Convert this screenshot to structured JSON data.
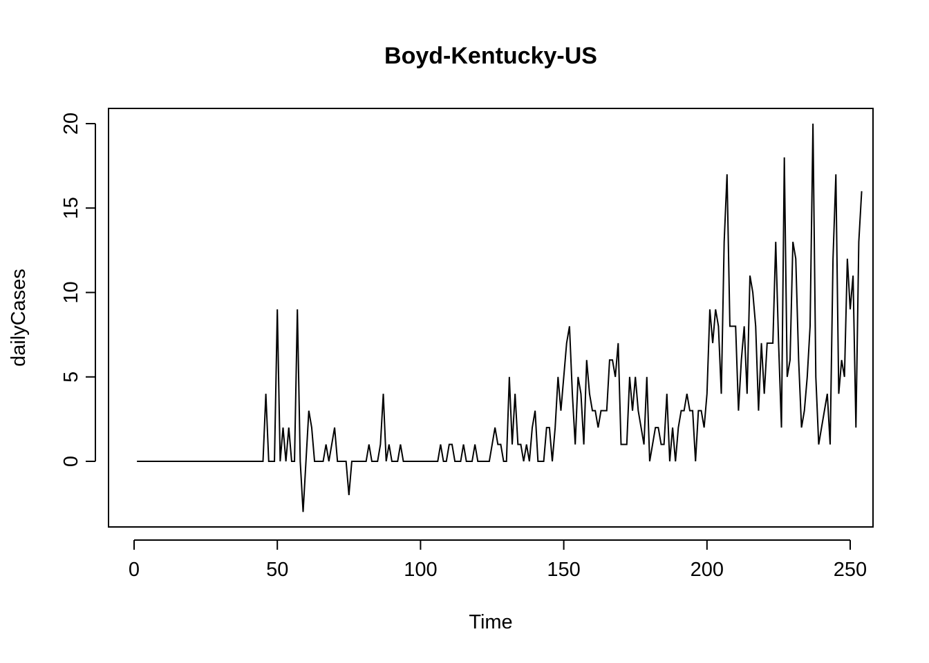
{
  "chart_data": {
    "type": "line",
    "title": "Boyd-Kentucky-US",
    "xlabel": "Time",
    "ylabel": "dailyCases",
    "xlim": [
      1,
      248
    ],
    "ylim": [
      -3,
      20
    ],
    "x_ticks": [
      0,
      50,
      100,
      150,
      200,
      250
    ],
    "y_ticks": [
      0,
      5,
      10,
      15,
      20
    ],
    "x_tick_labels": [
      "0",
      "50",
      "100",
      "150",
      "200",
      "250"
    ],
    "y_tick_labels": [
      "0",
      "5",
      "10",
      "15",
      "20"
    ],
    "grid": false,
    "series": [
      {
        "color": "#000000",
        "x_start": 1,
        "values": [
          0,
          0,
          0,
          0,
          0,
          0,
          0,
          0,
          0,
          0,
          0,
          0,
          0,
          0,
          0,
          0,
          0,
          0,
          0,
          0,
          0,
          0,
          0,
          0,
          0,
          0,
          0,
          0,
          0,
          0,
          0,
          0,
          0,
          0,
          0,
          0,
          0,
          0,
          0,
          0,
          0,
          0,
          0,
          0,
          0,
          4,
          0,
          0,
          0,
          9,
          0,
          2,
          0,
          2,
          0,
          0,
          9,
          0,
          -3,
          0,
          3,
          2,
          0,
          0,
          0,
          0,
          1,
          0,
          1,
          2,
          0,
          0,
          0,
          0,
          -2,
          0,
          0,
          0,
          0,
          0,
          0,
          1,
          0,
          0,
          0,
          1,
          4,
          0,
          1,
          0,
          0,
          0,
          1,
          0,
          0,
          0,
          0,
          0,
          0,
          0,
          0,
          0,
          0,
          0,
          0,
          0,
          1,
          0,
          0,
          1,
          1,
          0,
          0,
          0,
          1,
          0,
          0,
          0,
          1,
          0,
          0,
          0,
          0,
          0,
          1,
          2,
          1,
          1,
          0,
          0,
          5,
          1,
          4,
          1,
          1,
          0,
          1,
          0,
          2,
          3,
          0,
          0,
          0,
          2,
          2,
          0,
          2,
          5,
          3,
          5,
          7,
          8,
          4,
          1,
          5,
          4,
          1,
          6,
          4,
          3,
          3,
          2,
          3,
          3,
          3,
          6,
          6,
          5,
          7,
          1,
          1,
          1,
          5,
          3,
          5,
          3,
          2,
          1,
          5,
          0,
          1,
          2,
          2,
          1,
          1,
          4,
          0,
          2,
          0,
          2,
          3,
          3,
          4,
          3,
          3,
          0,
          3,
          3,
          2,
          4,
          9,
          7,
          9,
          8,
          4,
          13,
          17,
          8,
          8,
          8,
          3,
          6,
          8,
          4,
          11,
          10,
          8,
          3,
          7,
          4,
          7,
          7,
          7,
          13,
          7,
          2,
          18,
          5,
          6,
          13,
          12,
          6,
          2,
          3,
          5,
          8,
          20,
          5,
          1,
          2,
          3,
          4,
          1,
          12,
          17,
          4,
          6,
          5,
          12,
          9,
          11,
          2,
          13,
          16
        ]
      }
    ]
  }
}
